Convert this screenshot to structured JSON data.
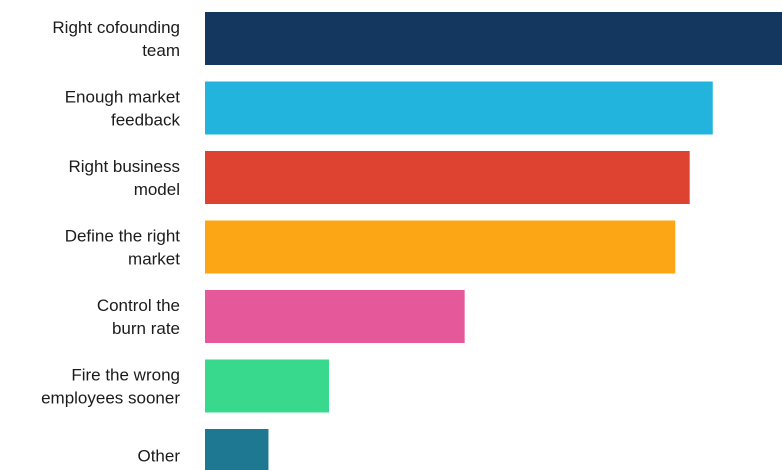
{
  "chart_data": {
    "type": "bar",
    "orientation": "horizontal",
    "title": "",
    "xlabel": "",
    "ylabel": "",
    "grid": false,
    "xlim": [
      0,
      100
    ],
    "categories": [
      [
        "Right cofounding",
        "team"
      ],
      [
        "Enough market",
        "feedback"
      ],
      [
        "Right business",
        "model"
      ],
      [
        "Define the right",
        "market"
      ],
      [
        "Control the",
        "burn rate"
      ],
      [
        "Fire the wrong",
        "employees sooner"
      ],
      [
        "Other"
      ]
    ],
    "values": [
      100,
      88,
      84,
      81.5,
      45,
      21.5,
      11
    ],
    "colors": [
      "#13375e",
      "#22b4dc",
      "#de4230",
      "#fca515",
      "#e5589a",
      "#38d98c",
      "#1e7891"
    ]
  }
}
